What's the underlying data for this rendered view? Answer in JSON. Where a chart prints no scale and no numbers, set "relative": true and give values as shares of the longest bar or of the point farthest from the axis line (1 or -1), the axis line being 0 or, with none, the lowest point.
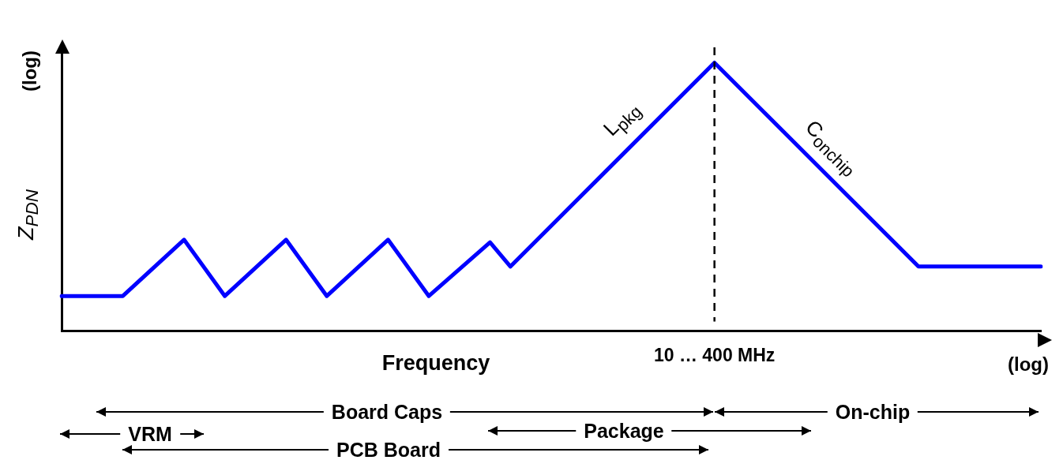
{
  "chart_data": {
    "type": "line",
    "relative": true,
    "xlabel": "Frequency",
    "ylabel": "Z$_{PDN}$",
    "categories": [
      null,
      null,
      null,
      null,
      null,
      null,
      null,
      null,
      null,
      null,
      null,
      null,
      null,
      null,
      null,
      null,
      null,
      null,
      null,
      null,
      null,
      null,
      null,
      null,
      null,
      null,
      null,
      null,
      null,
      null,
      null,
      null,
      null,
      null,
      null,
      null,
      null,
      null,
      null,
      null,
      null,
      null,
      null,
      null,
      null,
      null,
      null,
      null,
      null
    ],
    "series": [
      {
        "color": "#0000ff",
        "values": [
          0.13,
          null,
          null,
          0.13,
          null,
          null,
          0.34,
          null,
          0.13,
          null,
          null,
          0.34,
          null,
          0.13,
          null,
          null,
          0.34,
          null,
          0.13,
          null,
          null,
          0.33,
          0.24,
          null,
          null,
          null,
          null,
          null,
          null,
          null,
          null,
          null,
          1,
          null,
          null,
          null,
          null,
          null,
          null,
          null,
          null,
          null,
          0.24,
          null,
          null,
          null,
          null,
          null,
          0.24
        ]
      }
    ],
    "marker": "none",
    "line_style": "solid",
    "grid": false,
    "legend": false,
    "ref_lines": [
      {
        "axis": "x",
        "label": "10 … 400 MHz",
        "color": "#000000",
        "line_style": "dashed"
      }
    ],
    "annotations": [
      "L$_{pkg}$",
      "C$_{onchip}$",
      "(log)",
      "(log)",
      "Board Caps",
      "VRM",
      "PCB Board",
      "Package",
      "On-chip"
    ]
  }
}
